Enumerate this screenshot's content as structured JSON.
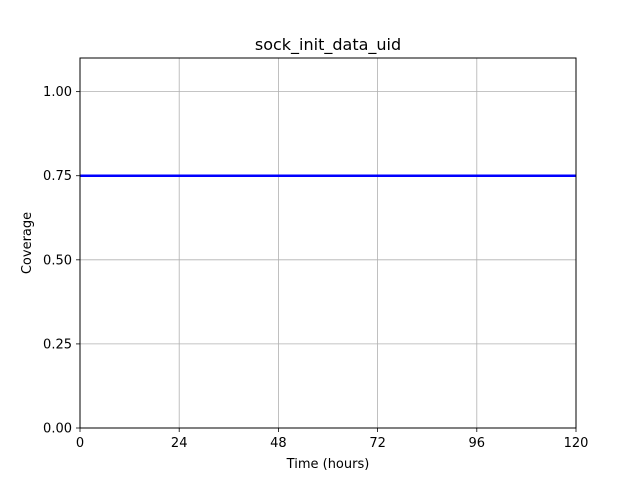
{
  "chart_data": {
    "type": "line",
    "title": "sock_init_data_uid",
    "xlabel": "Time (hours)",
    "ylabel": "Coverage",
    "xlim": [
      0,
      120
    ],
    "ylim": [
      0,
      1.1
    ],
    "xticks": [
      0,
      24,
      48,
      72,
      96,
      120
    ],
    "xtick_labels": [
      "0",
      "24",
      "48",
      "72",
      "96",
      "120"
    ],
    "yticks": [
      0,
      0.25,
      0.5,
      0.75,
      1.0
    ],
    "ytick_labels": [
      "0.00",
      "0.25",
      "0.50",
      "0.75",
      "1.00"
    ],
    "grid": true,
    "legend": "none",
    "series": [
      {
        "color": "#0000ff",
        "x": [
          0,
          120
        ],
        "y": [
          0.75,
          0.75
        ]
      }
    ]
  }
}
